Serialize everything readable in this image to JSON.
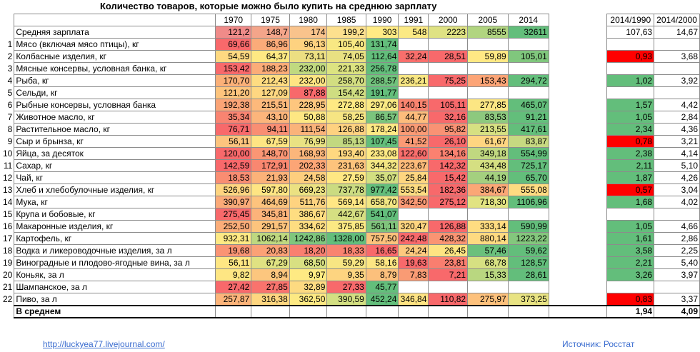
{
  "title": "Количество товаров, которые можно было купить на среднюю зарплату",
  "years": [
    "1970",
    "1975",
    "1980",
    "1985",
    "1990",
    "1991",
    "2000",
    "2005",
    "2014"
  ],
  "ratio_headers": [
    "2014/1990",
    "2014/2000"
  ],
  "rows": [
    {
      "idx": "",
      "name": "Средняя зарплата",
      "vals": [
        "121,2",
        "148,7",
        "174",
        "199,2",
        "303",
        "548",
        "2223",
        "8555",
        "32611"
      ],
      "colors": [
        "#f08b89",
        "#f4a58a",
        "#f9c38c",
        "#fde08e",
        "#ffeb84",
        "#fbe984",
        "#dfe283",
        "#b1d580",
        "#63be7b"
      ],
      "r1": "107,63",
      "r1c": "",
      "r2": "14,67",
      "r2c": ""
    },
    {
      "idx": "1",
      "name": "Мясо (включая мясо птицы), кг",
      "vals": [
        "69,66",
        "86,96",
        "96,13",
        "105,40",
        "131,74",
        "",
        "",
        "",
        ""
      ],
      "colors": [
        "#f8696b",
        "#fbab79",
        "#fed280",
        "#f8e883",
        "#63be7b",
        "",
        "",
        "",
        ""
      ],
      "r1": "",
      "r1c": "",
      "r2": "",
      "r2c": ""
    },
    {
      "idx": "2",
      "name": "Колбасные изделия, кг",
      "vals": [
        "54,59",
        "64,37",
        "73,11",
        "74,05",
        "112,64",
        "32,24",
        "28,51",
        "59,89",
        "105,01"
      ],
      "colors": [
        "#fed981",
        "#fee983",
        "#ecdf82",
        "#e8e082",
        "#63be7b",
        "#f96f6c",
        "#f8696b",
        "#ffe884",
        "#80c77d"
      ],
      "r1": "0,93",
      "r1c": "#ff0000",
      "r2": "3,68",
      "r2c": ""
    },
    {
      "idx": "3",
      "name": "Мясные консервы, условная банка, кг",
      "vals": [
        "153,42",
        "188,23",
        "232,00",
        "221,33",
        "256,78"
      ],
      "colors": [
        "#f8696b",
        "#fbac78",
        "#c0d980",
        "#dce381",
        "#63be7b"
      ],
      "r1": "",
      "r1c": "",
      "r2": "",
      "r2c": ""
    },
    {
      "idx": "4",
      "name": "Рыба, кг",
      "vals": [
        "170,70",
        "212,43",
        "232,00",
        "258,70",
        "288,57",
        "236,21",
        "75,25",
        "153,43",
        "294,72"
      ],
      "colors": [
        "#fbb078",
        "#fedc81",
        "#ffe583",
        "#d2dd81",
        "#71c27c",
        "#f8e783",
        "#f8696b",
        "#fca476",
        "#63be7b"
      ],
      "r1": "1,02",
      "r1c": "#63be7b",
      "r2": "3,92",
      "r2c": ""
    },
    {
      "idx": "5",
      "name": "Сельди, кг",
      "vals": [
        "121,20",
        "127,09",
        "87,88",
        "154,42",
        "191,77"
      ],
      "colors": [
        "#fdc47d",
        "#fed781",
        "#f8696b",
        "#cfdd81",
        "#63be7b"
      ],
      "r1": "",
      "r1c": "",
      "r2": "",
      "r2c": ""
    },
    {
      "idx": "6",
      "name": "Рыбные консервы, условная банка",
      "vals": [
        "192,38",
        "215,51",
        "228,95",
        "272,88",
        "297,06",
        "140,15",
        "105,11",
        "277,85",
        "465,07"
      ],
      "colors": [
        "#fba476",
        "#fdb97b",
        "#fec67e",
        "#fee983",
        "#f9e983",
        "#f9846f",
        "#f8696b",
        "#fce683",
        "#63be7b"
      ],
      "r1": "1,57",
      "r1c": "#63be7b",
      "r2": "4,42",
      "r2c": ""
    },
    {
      "idx": "7",
      "name": "Животное масло, кг",
      "vals": [
        "35,34",
        "43,10",
        "50,88",
        "58,25",
        "86,57",
        "44,77",
        "32,16",
        "83,53",
        "91,21"
      ],
      "colors": [
        "#f98471",
        "#fcb57b",
        "#fee783",
        "#f6e583",
        "#7bc57d",
        "#fdbd7c",
        "#f8696b",
        "#8dc97e",
        "#63be7b"
      ],
      "r1": "1,05",
      "r1c": "#63be7b",
      "r2": "2,84",
      "r2c": ""
    },
    {
      "idx": "8",
      "name": "Растительное масло, кг",
      "vals": [
        "76,71",
        "94,11",
        "111,54",
        "126,88",
        "178,24",
        "100,00",
        "95,82",
        "213,55",
        "417,61"
      ],
      "colors": [
        "#f8696b",
        "#f98e73",
        "#fab37a",
        "#fed180",
        "#fee984",
        "#fa9b75",
        "#f99274",
        "#d6e082",
        "#63be7b"
      ],
      "r1": "2,34",
      "r1c": "#63be7b",
      "r2": "4,36",
      "r2c": ""
    },
    {
      "idx": "9",
      "name": "Сыр и брынза, кг",
      "vals": [
        "56,11",
        "67,59",
        "76,99",
        "85,13",
        "107,45",
        "41,52",
        "26,10",
        "61,67",
        "83,87"
      ],
      "colors": [
        "#fcc47e",
        "#fee583",
        "#e9e283",
        "#c2d880",
        "#63be7b",
        "#fa9a75",
        "#f8696b",
        "#fed581",
        "#c7d981"
      ],
      "r1": "0,78",
      "r1c": "#ff0000",
      "r2": "3,21",
      "r2c": ""
    },
    {
      "idx": "10",
      "name": "Яйца, за десяток",
      "vals": [
        "120,00",
        "148,70",
        "168,93",
        "193,40",
        "233,08",
        "122,60",
        "134,16",
        "349,18",
        "554,99"
      ],
      "colors": [
        "#f8696b",
        "#fa9674",
        "#fcb67b",
        "#fed880",
        "#feea84",
        "#f96e6c",
        "#fa8170",
        "#c0d880",
        "#63be7b"
      ],
      "r1": "2,38",
      "r1c": "#63be7b",
      "r2": "4,14",
      "r2c": ""
    },
    {
      "idx": "11",
      "name": "Сахар, кг",
      "vals": [
        "142,59",
        "172,91",
        "202,33",
        "231,63",
        "344,32",
        "223,67",
        "142,32",
        "434,48",
        "725,17"
      ],
      "colors": [
        "#f8696b",
        "#f98770",
        "#fca576",
        "#fdc37c",
        "#f3e683",
        "#fdbb7a",
        "#f8696b",
        "#d5df82",
        "#63be7b"
      ],
      "r1": "2,11",
      "r1c": "#63be7b",
      "r2": "5,10",
      "r2c": ""
    },
    {
      "idx": "12",
      "name": "Чай, кг",
      "vals": [
        "18,53",
        "21,93",
        "24,58",
        "27,59",
        "35,07",
        "25,84",
        "15,42",
        "44,19",
        "65,70"
      ],
      "colors": [
        "#f98d72",
        "#fbb279",
        "#fdce7e",
        "#ffe783",
        "#d2df81",
        "#fed680",
        "#f8696b",
        "#a4d07f",
        "#63be7b"
      ],
      "r1": "1,87",
      "r1c": "#63be7b",
      "r2": "4,26",
      "r2c": ""
    },
    {
      "idx": "13",
      "name": "Хлеб и хлебобулочные изделия, кг",
      "vals": [
        "526,96",
        "597,80",
        "669,23",
        "737,78",
        "977,42",
        "553,54",
        "182,36",
        "384,67",
        "555,08"
      ],
      "colors": [
        "#fed480",
        "#fee583",
        "#ebe182",
        "#cbdb81",
        "#63be7b",
        "#fedb81",
        "#f8696b",
        "#fba776",
        "#fedb81"
      ],
      "r1": "0,57",
      "r1c": "#ff0000",
      "r2": "3,04",
      "r2c": ""
    },
    {
      "idx": "14",
      "name": "Мука, кг",
      "vals": [
        "390,97",
        "464,69",
        "511,76",
        "569,14",
        "658,70",
        "342,50",
        "275,12",
        "718,30",
        "1106,96"
      ],
      "colors": [
        "#fbaa78",
        "#fdc37d",
        "#fed380",
        "#ffe784",
        "#f1e683",
        "#fa9974",
        "#f8696b",
        "#e1e382",
        "#63be7b"
      ],
      "r1": "1,68",
      "r1c": "#63be7b",
      "r2": "4,02",
      "r2c": ""
    },
    {
      "idx": "15",
      "name": "Крупа и бобовые, кг",
      "vals": [
        "275,45",
        "345,81",
        "386,67",
        "442,67",
        "541,07"
      ],
      "colors": [
        "#f8696b",
        "#fcb37a",
        "#fedd81",
        "#d5df82",
        "#63be7b"
      ],
      "r1": "",
      "r1c": "",
      "r2": "",
      "r2c": ""
    },
    {
      "idx": "16",
      "name": "Макаронные изделия, кг",
      "vals": [
        "252,50",
        "291,57",
        "334,62",
        "375,85",
        "561,11",
        "320,47",
        "126,88",
        "333,14",
        "590,99"
      ],
      "colors": [
        "#fbad79",
        "#fdc47d",
        "#fedd81",
        "#fbe983",
        "#80c47c",
        "#fed580",
        "#f8696b",
        "#fedc81",
        "#63be7b"
      ],
      "r1": "1,05",
      "r1c": "#63be7b",
      "r2": "4,66",
      "r2c": ""
    },
    {
      "idx": "17",
      "name": "Картофель, кг",
      "vals": [
        "932,31",
        "1062,14",
        "1242,86",
        "1328,00",
        "757,50",
        "242,48",
        "428,32",
        "880,14",
        "1223,22"
      ],
      "colors": [
        "#fee984",
        "#bed880",
        "#7fc67d",
        "#63be7b",
        "#fcc27c",
        "#f8696b",
        "#fa9473",
        "#feda81",
        "#84c77d"
      ],
      "r1": "1,61",
      "r1c": "#63be7b",
      "r2": "2,86",
      "r2c": ""
    },
    {
      "idx": "18",
      "name": "Водка и ликероводочные изделия, за л",
      "vals": [
        "19,68",
        "20,83",
        "18,20",
        "18,33",
        "16,65",
        "24,24",
        "26,45",
        "57,46",
        "59,62"
      ],
      "colors": [
        "#fa9474",
        "#fba176",
        "#f97f70",
        "#f98370",
        "#f8696b",
        "#fdc97e",
        "#fee482",
        "#6ac07c",
        "#63be7b"
      ],
      "r1": "3,58",
      "r1c": "#63be7b",
      "r2": "2,25",
      "r2c": ""
    },
    {
      "idx": "19",
      "name": "Виноградные и плодово-ягодные вина, за л",
      "vals": [
        "56,11",
        "67,29",
        "68,50",
        "59,29",
        "58,16",
        "19,63",
        "23,81",
        "68,78",
        "128,57"
      ],
      "colors": [
        "#fee683",
        "#e0e282",
        "#d8e082",
        "#f7e683",
        "#fde683",
        "#f8696b",
        "#f97e6f",
        "#d6e082",
        "#63be7b"
      ],
      "r1": "2,21",
      "r1c": "#63be7b",
      "r2": "5,40",
      "r2c": ""
    },
    {
      "idx": "20",
      "name": "Коньяк, за л",
      "vals": [
        "9,82",
        "8,94",
        "9,97",
        "9,35",
        "8,79",
        "7,83",
        "7,21",
        "15,33",
        "28,61"
      ],
      "colors": [
        "#fee683",
        "#fcc67e",
        "#feea83",
        "#fdd480",
        "#fcc07c",
        "#f99b74",
        "#f8696b",
        "#b9d780",
        "#63be7b"
      ],
      "r1": "3,26",
      "r1c": "#63be7b",
      "r2": "3,97",
      "r2c": ""
    },
    {
      "idx": "21",
      "name": "Шампанское, за л",
      "vals": [
        "27,42",
        "27,85",
        "32,89",
        "27,33",
        "45,77"
      ],
      "colors": [
        "#f8696b",
        "#f9736d",
        "#fdda81",
        "#f8696b",
        "#63be7b"
      ],
      "r1": "",
      "r1c": "",
      "r2": "",
      "r2c": ""
    },
    {
      "idx": "22",
      "name": "Пиво, за л",
      "vals": [
        "257,87",
        "316,38",
        "362,50",
        "390,59",
        "452,24",
        "346,84",
        "110,82",
        "275,97",
        "373,25"
      ],
      "colors": [
        "#fcb47a",
        "#fed680",
        "#fde983",
        "#d3df82",
        "#63be7b",
        "#fee383",
        "#f8696b",
        "#fdc17c",
        "#e8e383"
      ],
      "r1": "0,83",
      "r1c": "#ff0000",
      "r2": "3,37",
      "r2c": ""
    }
  ],
  "average": {
    "label": "В среднем",
    "r1": "1,94",
    "r2": "4,09"
  },
  "footer": {
    "link": "http://luckyea77.livejournal.com/",
    "source": "Источник: Росстат"
  }
}
